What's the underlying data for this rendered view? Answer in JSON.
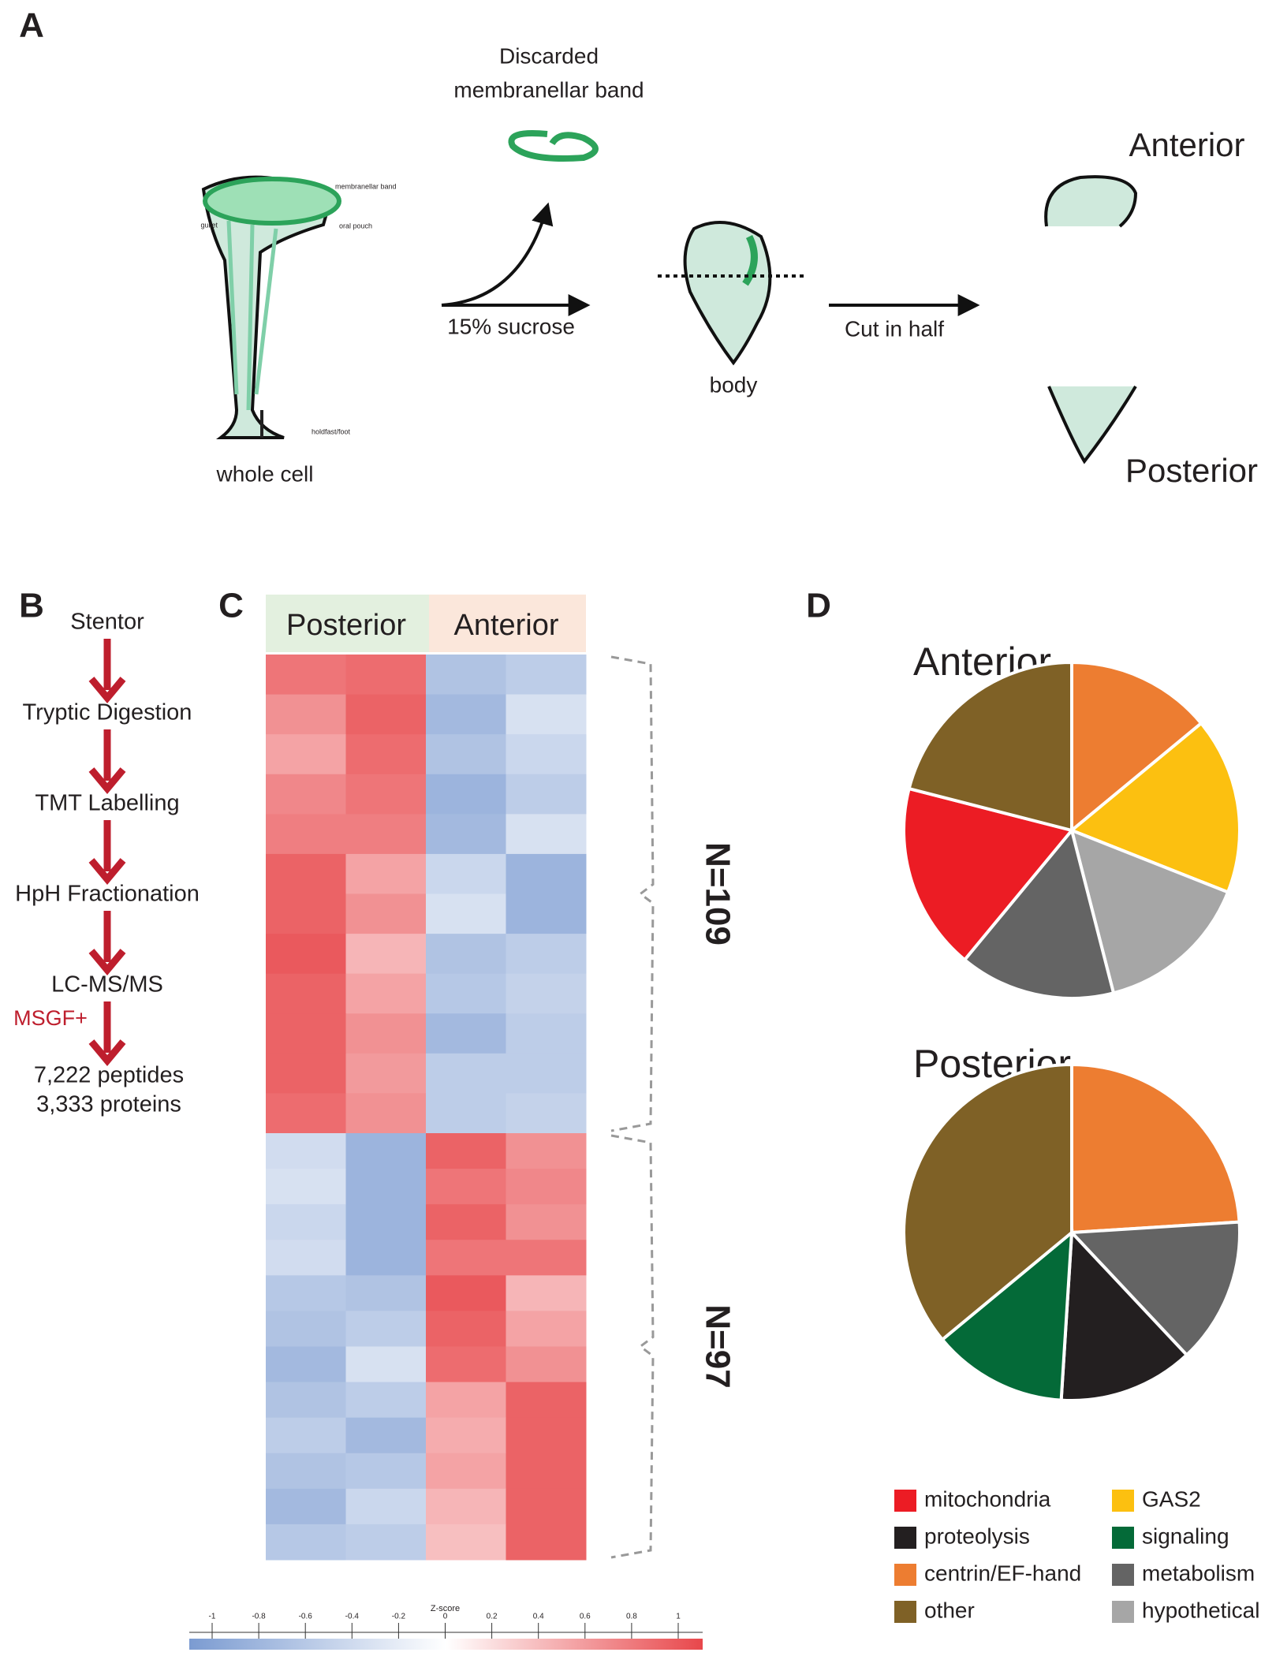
{
  "panels": {
    "a": "A",
    "b": "B",
    "c": "C",
    "d": "D"
  },
  "diagram": {
    "discarded": [
      "Discarded",
      "membranellar band"
    ],
    "whole_cell": "whole cell",
    "cell_parts": [
      "membranellar band",
      "gullet",
      "oral pouch",
      "holdfast/foot"
    ],
    "sucrose": "15% sucrose",
    "body": "body",
    "cut": "Cut in half",
    "anterior": "Anterior",
    "posterior": "Posterior"
  },
  "workflow": {
    "steps": [
      "Stentor",
      "Tryptic Digestion",
      "TMT Labelling",
      "HpH Fractionation",
      "LC-MS/MS"
    ],
    "tool": "MSGF+",
    "result": [
      "7,222 peptides",
      "3,333 proteins"
    ]
  },
  "heatmap": {
    "columns": [
      "Posterior",
      "Anterior"
    ],
    "clusters": [
      {
        "label": "N=109",
        "values": [
          [
            0.75,
            0.8,
            -0.6,
            -0.5
          ],
          [
            0.6,
            0.85,
            -0.7,
            -0.3
          ],
          [
            0.5,
            0.8,
            -0.6,
            -0.4
          ],
          [
            0.65,
            0.75,
            -0.75,
            -0.5
          ],
          [
            0.7,
            0.7,
            -0.7,
            -0.3
          ],
          [
            0.85,
            0.5,
            -0.4,
            -0.75
          ],
          [
            0.85,
            0.6,
            -0.3,
            -0.75
          ],
          [
            0.9,
            0.4,
            -0.6,
            -0.5
          ],
          [
            0.85,
            0.5,
            -0.55,
            -0.45
          ],
          [
            0.85,
            0.6,
            -0.7,
            -0.5
          ],
          [
            0.85,
            0.55,
            -0.5,
            -0.5
          ],
          [
            0.8,
            0.6,
            -0.5,
            -0.45
          ]
        ]
      },
      {
        "label": "N=97",
        "values": [
          [
            -0.35,
            -0.75,
            0.85,
            0.6
          ],
          [
            -0.3,
            -0.75,
            0.75,
            0.65
          ],
          [
            -0.4,
            -0.75,
            0.85,
            0.6
          ],
          [
            -0.35,
            -0.75,
            0.75,
            0.75
          ],
          [
            -0.55,
            -0.6,
            0.9,
            0.4
          ],
          [
            -0.6,
            -0.5,
            0.85,
            0.5
          ],
          [
            -0.7,
            -0.3,
            0.8,
            0.6
          ],
          [
            -0.6,
            -0.5,
            0.5,
            0.85
          ],
          [
            -0.5,
            -0.7,
            0.45,
            0.85
          ],
          [
            -0.6,
            -0.55,
            0.5,
            0.85
          ],
          [
            -0.7,
            -0.4,
            0.4,
            0.85
          ],
          [
            -0.55,
            -0.5,
            0.35,
            0.85
          ]
        ]
      }
    ],
    "colorbar": {
      "title": "Z-score",
      "lim": [
        -1,
        1
      ],
      "ticks": [
        -1,
        -0.8,
        -0.6,
        -0.4,
        -0.2,
        0,
        0.2,
        0.4,
        0.6,
        0.8,
        1
      ],
      "colors": [
        "#7b9bd1",
        "#ffffff",
        "#e8474b"
      ]
    }
  },
  "legend": {
    "items": [
      {
        "name": "mitochondria",
        "color": "#ec1c24"
      },
      {
        "name": "proteolysis",
        "color": "#231f20"
      },
      {
        "name": "centrin/EF-hand",
        "color": "#ed7d31"
      },
      {
        "name": "other",
        "color": "#7f6126"
      },
      {
        "name": "GAS2",
        "color": "#fcc010"
      },
      {
        "name": "signaling",
        "color": "#046a38"
      },
      {
        "name": "metabolism",
        "color": "#646464"
      },
      {
        "name": "hypothetical",
        "color": "#a6a6a6"
      }
    ]
  },
  "chart_data": [
    {
      "type": "pie",
      "title": "Anterior",
      "categories": [
        "centrin/EF-hand",
        "GAS2",
        "hypothetical",
        "metabolism",
        "mitochondria",
        "other"
      ],
      "values": [
        14,
        17,
        15,
        15,
        18,
        21
      ]
    },
    {
      "type": "pie",
      "title": "Posterior",
      "categories": [
        "centrin/EF-hand",
        "metabolism",
        "proteolysis",
        "signaling",
        "other"
      ],
      "values": [
        24,
        14,
        13,
        13,
        36
      ]
    }
  ]
}
